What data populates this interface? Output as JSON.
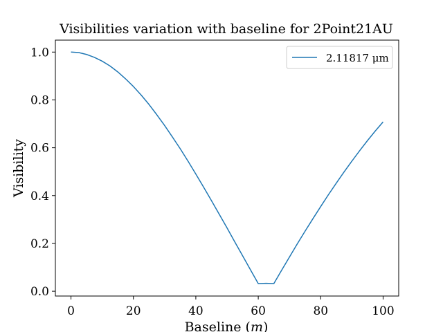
{
  "chart_data": {
    "type": "line",
    "title": "Visibilities variation with baseline for 2Point21AU",
    "xlabel": "Baseline (m)",
    "ylabel": "Visibility",
    "xlim": [
      -5,
      105
    ],
    "ylim": [
      -0.02,
      1.05
    ],
    "xticks": [
      0,
      20,
      40,
      60,
      80,
      100
    ],
    "xtick_labels": [
      "0",
      "20",
      "40",
      "60",
      "80",
      "100"
    ],
    "yticks": [
      0.0,
      0.2,
      0.4,
      0.6,
      0.8,
      1.0
    ],
    "ytick_labels": [
      "0.0",
      "0.2",
      "0.4",
      "0.6",
      "0.8",
      "1.0"
    ],
    "grid": false,
    "legend_position": "top-right",
    "series": [
      {
        "name": "2.11817 μm",
        "color": "#1f77b4",
        "x": [
          0,
          2.5,
          5,
          7.5,
          10,
          12.5,
          15,
          17.5,
          20,
          22.5,
          25,
          27.5,
          30,
          32.5,
          35,
          37.5,
          40,
          42.5,
          45,
          47.5,
          50,
          52.5,
          55,
          57.5,
          60,
          62.5,
          65,
          67.5,
          70,
          72.5,
          75,
          77.5,
          80,
          82.5,
          85,
          87.5,
          90,
          92.5,
          95,
          97.5,
          100
        ],
        "y": [
          1.0,
          0.998,
          0.99,
          0.978,
          0.962,
          0.942,
          0.917,
          0.888,
          0.856,
          0.82,
          0.781,
          0.738,
          0.693,
          0.645,
          0.596,
          0.544,
          0.49,
          0.435,
          0.379,
          0.322,
          0.265,
          0.206,
          0.148,
          0.09,
          0.032,
          0.033,
          0.032,
          0.088,
          0.143,
          0.198,
          0.251,
          0.303,
          0.354,
          0.404,
          0.452,
          0.499,
          0.544,
          0.588,
          0.63,
          0.67,
          0.708
        ]
      }
    ]
  }
}
